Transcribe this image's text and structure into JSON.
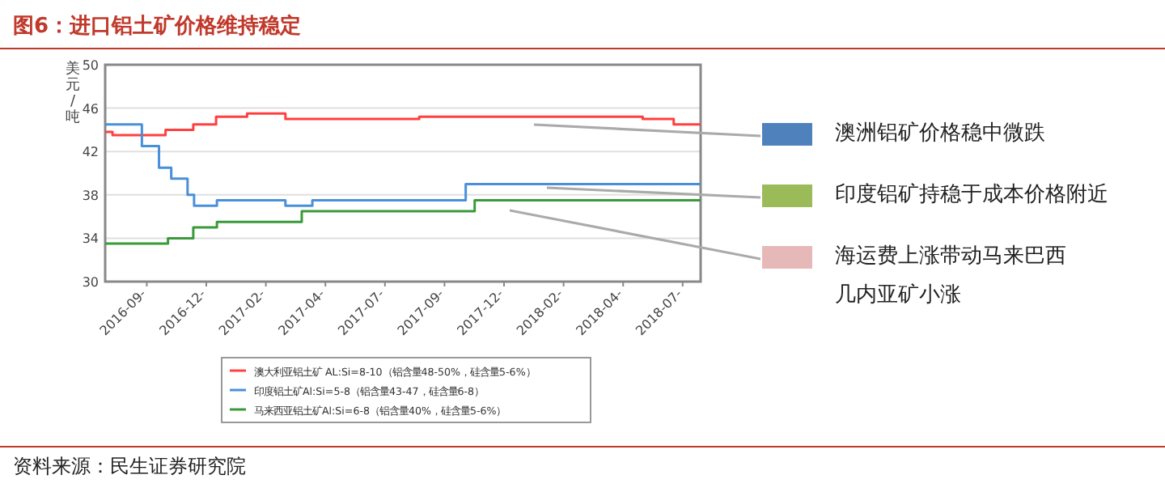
{
  "chart_data": {
    "type": "step",
    "title": "图6：进口铝土矿价格维持稳定",
    "ylabel": "美元/吨",
    "xlim": [
      "2016-07-31",
      "2018-07-31"
    ],
    "xticks": [
      {
        "value": "2016-09-20",
        "label": "2016-09-"
      },
      {
        "value": "2016-12-02",
        "label": "2016-12-"
      },
      {
        "value": "2017-02-13",
        "label": "2017-02-"
      },
      {
        "value": "2017-04-27",
        "label": "2017-04-"
      },
      {
        "value": "2017-07-09",
        "label": "2017-07-"
      },
      {
        "value": "2017-09-20",
        "label": "2017-09-"
      },
      {
        "value": "2017-12-02",
        "label": "2017-12-"
      },
      {
        "value": "2018-02-13",
        "label": "2018-02-"
      },
      {
        "value": "2018-04-27",
        "label": "2018-04-"
      },
      {
        "value": "2018-07-09",
        "label": "2018-07-"
      }
    ],
    "ylim": [
      30,
      50
    ],
    "yticks": [
      30,
      34,
      38,
      42,
      46,
      50
    ],
    "grid": "y",
    "legend": "bottom",
    "marker": "none",
    "line_style": "solid",
    "series": [
      {
        "name": "澳大利亚铝土矿 AL:Si=8-10（铝含量48-50%，硅含量5-6%）",
        "color": "#ff4040",
        "x": [
          "2016-07-31",
          "2016-08-09",
          "2016-10-13",
          "2016-11-16",
          "2016-12-14",
          "2017-01-21",
          "2017-03-09",
          "2017-08-20",
          "2018-05-21",
          "2018-06-28",
          "2018-07-31"
        ],
        "values": [
          43.8,
          43.5,
          44,
          44.5,
          45.2,
          45.5,
          45,
          45.2,
          45,
          44.5,
          44.5
        ]
      },
      {
        "name": "印度铝土矿Al:Si=5-8（铝含量43-47，硅含量6-8）",
        "color": "#4a90d9",
        "x": [
          "2016-07-31",
          "2016-09-14",
          "2016-10-05",
          "2016-10-20",
          "2016-11-09",
          "2016-11-17",
          "2016-12-15",
          "2017-03-09",
          "2017-04-11",
          "2017-10-16",
          "2018-07-31"
        ],
        "values": [
          44.5,
          42.5,
          40.5,
          39.5,
          38,
          37,
          37.5,
          37,
          37.5,
          39,
          39
        ]
      },
      {
        "name": "马来西亚铝土矿Al:Si=6-8（铝含量40%，硅含量5-6%）",
        "color": "#3a9a3a",
        "x": [
          "2016-07-31",
          "2016-10-16",
          "2016-11-16",
          "2016-12-15",
          "2017-03-29",
          "2017-10-27",
          "2018-07-31"
        ],
        "values": [
          33.5,
          34,
          35,
          35.5,
          36.5,
          37.5,
          37.5
        ]
      }
    ],
    "annotations": [
      "澳洲铝矿价格稳中微跌",
      "印度铝矿持稳于成本价格附近",
      "海运费上涨带动马来巴西几内亚矿小涨",
      "资料来源：民生证券研究院"
    ]
  }
}
